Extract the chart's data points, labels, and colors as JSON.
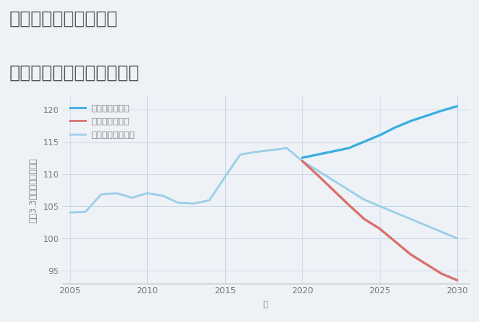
{
  "title_line1": "岐阜県関市辻井戸町の",
  "title_line2": "中古マンションの価格推移",
  "xlabel": "年",
  "ylabel": "坪（3.3㎡）単価（万円）",
  "background_color": "#eef2f7",
  "plot_background": "#eef2f7",
  "ylim": [
    93,
    122
  ],
  "yticks": [
    95,
    100,
    105,
    110,
    115,
    120
  ],
  "xlim": [
    2004.5,
    2030.8
  ],
  "xticks": [
    2005,
    2010,
    2015,
    2020,
    2025,
    2030
  ],
  "good_scenario": {
    "label": "グッドシナリオ",
    "color": "#3baee0",
    "linewidth": 2.5,
    "years": [
      2020,
      2021,
      2022,
      2023,
      2024,
      2025,
      2026,
      2027,
      2028,
      2029,
      2030
    ],
    "values": [
      112.5,
      113.0,
      113.5,
      114.0,
      115.0,
      116.0,
      117.2,
      118.2,
      119.0,
      119.8,
      120.5
    ]
  },
  "bad_scenario": {
    "label": "バッドシナリオ",
    "color": "#d9706a",
    "linewidth": 2.5,
    "years": [
      2020,
      2021,
      2022,
      2023,
      2024,
      2025,
      2026,
      2027,
      2028,
      2029,
      2030
    ],
    "values": [
      112.0,
      109.8,
      107.5,
      105.2,
      103.0,
      101.5,
      99.5,
      97.5,
      96.0,
      94.5,
      93.5
    ]
  },
  "normal_scenario": {
    "label": "ノーマルシナリオ",
    "color": "#9dcfe8",
    "linewidth": 2.2,
    "years": [
      2005,
      2006,
      2007,
      2008,
      2009,
      2010,
      2011,
      2012,
      2013,
      2014,
      2015,
      2016,
      2017,
      2018,
      2019,
      2020,
      2021,
      2022,
      2023,
      2024,
      2025,
      2026,
      2027,
      2028,
      2029,
      2030
    ],
    "values": [
      104.0,
      104.1,
      106.8,
      107.0,
      106.3,
      107.0,
      106.6,
      105.5,
      105.4,
      105.9,
      109.5,
      113.0,
      113.4,
      113.7,
      114.0,
      112.0,
      110.5,
      109.0,
      107.5,
      106.0,
      105.0,
      104.0,
      103.0,
      102.0,
      101.0,
      100.0
    ]
  },
  "legend_good_color": "#3baee0",
  "legend_bad_color": "#d9706a",
  "legend_normal_color": "#9dcfe8",
  "legend_fontsize": 9.5,
  "title_fontsize": 19,
  "axis_fontsize": 9,
  "tick_fontsize": 9,
  "grid_color": "#c5d5e5",
  "title_color": "#555555",
  "tick_color": "#777777"
}
